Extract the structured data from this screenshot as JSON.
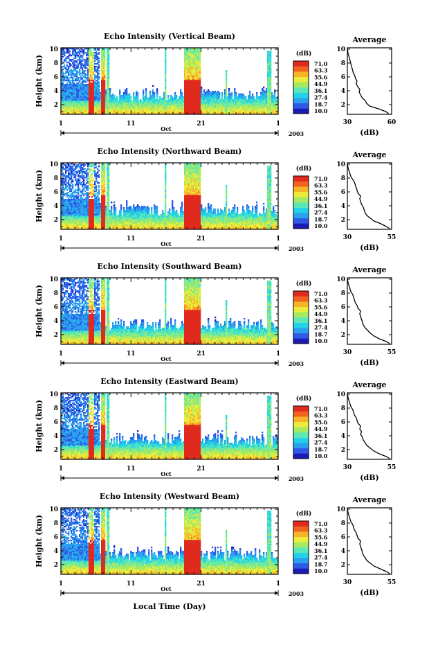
{
  "chart_data": {
    "type": "heatmap",
    "xlabel": "Local Time (Day)",
    "month_label": "Oct",
    "year_label": "2003",
    "x_ticks": [
      "1",
      "11",
      "21",
      "1"
    ],
    "y_ticks": [
      "2",
      "4",
      "6",
      "8",
      "10"
    ],
    "ylabel": "Height (km)",
    "ylim": [
      0.6,
      10.2
    ],
    "colorbar": {
      "unit": "(dB)",
      "ticks": [
        "71.0",
        "63.3",
        "55.6",
        "44.9",
        "36.1",
        "27.4",
        "18.7",
        "10.0"
      ],
      "range": [
        10.0,
        71.0
      ]
    },
    "panels": [
      {
        "title": "Echo Intensity (Vertical Beam)",
        "profile_title": "Average",
        "profile_xlabel": "(dB)",
        "profile_xticks": [
          "30",
          "60"
        ],
        "profile_xlim": [
          30,
          60
        ],
        "profile": {
          "height": [
            0.7,
            1.0,
            1.4,
            1.8,
            2.2,
            2.6,
            3.0,
            3.4,
            3.8,
            4.2,
            4.6,
            5.0,
            5.4,
            5.8,
            6.2,
            6.6,
            7.0,
            7.4,
            7.8,
            8.2,
            8.6,
            9.0,
            9.4,
            9.8,
            10.1
          ],
          "db": [
            58,
            56,
            51,
            45,
            43,
            42,
            40,
            39,
            38,
            38.5,
            37,
            36,
            36.5,
            35.5,
            35,
            34,
            33.5,
            33,
            32.5,
            32,
            31.5,
            31,
            30.5,
            30.2,
            30
          ]
        }
      },
      {
        "title": "Echo Intensity (Northward Beam)",
        "profile_title": "Average",
        "profile_xlabel": "(dB)",
        "profile_xticks": [
          "30",
          "55"
        ],
        "profile_xlim": [
          30,
          55
        ],
        "profile": {
          "height": [
            0.7,
            1.0,
            1.4,
            1.8,
            2.2,
            2.6,
            3.0,
            3.4,
            3.8,
            4.2,
            4.6,
            5.0,
            5.4,
            5.8,
            6.2,
            6.6,
            7.0,
            7.4,
            7.8,
            8.2,
            8.6,
            9.0,
            9.4,
            9.8,
            10.1
          ],
          "db": [
            54,
            52,
            49,
            45,
            43,
            41,
            40,
            39.5,
            39,
            38,
            37.5,
            37,
            37.5,
            36,
            35.5,
            35,
            34.5,
            34,
            33,
            32,
            31.5,
            31,
            30.5,
            30.2,
            30
          ]
        }
      },
      {
        "title": "Echo Intensity (Southward Beam)",
        "profile_title": "Average",
        "profile_xlabel": "(dB)",
        "profile_xticks": [
          "30",
          "55"
        ],
        "profile_xlim": [
          30,
          55
        ],
        "profile": {
          "height": [
            0.7,
            1.0,
            1.4,
            1.8,
            2.2,
            2.6,
            3.0,
            3.4,
            3.8,
            4.2,
            4.6,
            5.0,
            5.4,
            5.8,
            6.2,
            6.6,
            7.0,
            7.4,
            7.8,
            8.2,
            8.6,
            9.0,
            9.4,
            9.8,
            10.1
          ],
          "db": [
            54,
            52,
            48,
            45,
            43,
            41.5,
            40,
            39,
            38.5,
            38,
            37.5,
            37,
            37.5,
            36,
            35.5,
            34.5,
            34,
            33.5,
            33,
            32,
            31.5,
            31,
            30.5,
            30.2,
            30
          ]
        }
      },
      {
        "title": "Echo Intensity (Eastward Beam)",
        "profile_title": "Average",
        "profile_xlabel": "(dB)",
        "profile_xticks": [
          "30",
          "55"
        ],
        "profile_xlim": [
          30,
          55
        ],
        "profile": {
          "height": [
            0.7,
            1.0,
            1.4,
            1.8,
            2.2,
            2.6,
            3.0,
            3.4,
            3.8,
            4.2,
            4.6,
            5.0,
            5.4,
            5.8,
            6.2,
            6.6,
            7.0,
            7.4,
            7.8,
            8.2,
            8.6,
            9.0,
            9.4,
            9.8,
            10.1
          ],
          "db": [
            54,
            52,
            48,
            45,
            43,
            41,
            40,
            39,
            38.5,
            37.5,
            38,
            37,
            37.5,
            36,
            35.5,
            35,
            34,
            33.5,
            33,
            32,
            31.5,
            31,
            30.5,
            30.2,
            30
          ]
        }
      },
      {
        "title": "Echo Intensity (Westward Beam)",
        "profile_title": "Average",
        "profile_xlabel": "(dB)",
        "profile_xticks": [
          "30",
          "55"
        ],
        "profile_xlim": [
          30,
          55
        ],
        "profile": {
          "height": [
            0.7,
            1.0,
            1.4,
            1.8,
            2.2,
            2.6,
            3.0,
            3.4,
            3.8,
            4.2,
            4.6,
            5.0,
            5.4,
            5.8,
            6.2,
            6.6,
            7.0,
            7.4,
            7.8,
            8.2,
            8.6,
            9.0,
            9.4,
            9.8,
            10.1
          ],
          "db": [
            54,
            52,
            48.5,
            45,
            43,
            41,
            40,
            39,
            38.5,
            38,
            37.5,
            37,
            37.5,
            36,
            35.5,
            35,
            34,
            33.5,
            33,
            32,
            31.5,
            31,
            30.5,
            30.2,
            30
          ]
        }
      }
    ],
    "colors": {
      "scale": [
        "#1a1ab4",
        "#2e5ae6",
        "#2aa0ee",
        "#22d2e6",
        "#5ce8b4",
        "#a6ea64",
        "#ecec3c",
        "#f8b428",
        "#f06420",
        "#e02a1e"
      ]
    }
  }
}
